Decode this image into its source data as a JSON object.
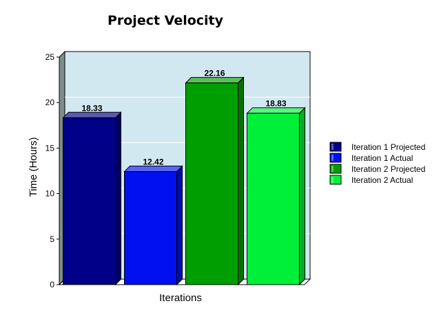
{
  "chart_data": {
    "type": "bar",
    "title": "Project Velocity",
    "xlabel": "Iterations",
    "ylabel": "Time (Hours)",
    "ylim": [
      0,
      25
    ],
    "yticks": [
      "0",
      "5",
      "10",
      "15",
      "20",
      "25"
    ],
    "grid": true,
    "legend_position": "right",
    "series": [
      {
        "name": "Iteration 1 Projected",
        "value": 18.33,
        "label": "18.33",
        "color": "#000088"
      },
      {
        "name": "Iteration 1 Actual",
        "value": 12.42,
        "label": "12.42",
        "color": "#0010f0"
      },
      {
        "name": "Iteration 2 Projected",
        "value": 22.16,
        "label": "22.16",
        "color": "#009e00"
      },
      {
        "name": "Iteration 2 Actual",
        "value": 18.83,
        "label": "18.83",
        "color": "#00f03a"
      }
    ],
    "plot_background": "#d2e8f0"
  }
}
